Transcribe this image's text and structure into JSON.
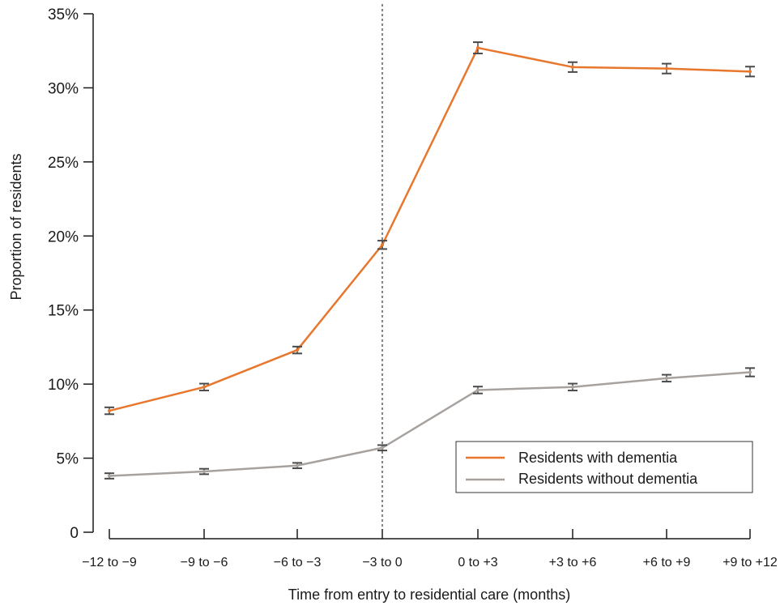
{
  "chart_data": {
    "type": "line",
    "title": "",
    "xlabel": "Time from entry to residential care (months)",
    "ylabel": "Proportion of residents",
    "categories": [
      "−12 to −9",
      "−9 to −6",
      "−6 to −3",
      "−3 to 0",
      "0 to +3",
      "+3 to +6",
      "+6 to +9",
      "+9 to +12"
    ],
    "y_ticks": [
      "0",
      "5%",
      "10%",
      "15%",
      "20%",
      "25%",
      "30%",
      "35%"
    ],
    "ylim": [
      0,
      35
    ],
    "y_unit": "%",
    "grid": false,
    "error_bars": true,
    "legend_position": "bottom-right",
    "reference_line": {
      "at_category": "−3 to 0",
      "style": "dotted"
    },
    "series": [
      {
        "name": "Residents with dementia",
        "color": "#e8772e",
        "values": [
          8.2,
          9.8,
          12.3,
          19.4,
          32.7,
          31.4,
          31.3,
          31.1
        ],
        "error": [
          0.15,
          0.15,
          0.15,
          0.2,
          0.3,
          0.25,
          0.25,
          0.25
        ]
      },
      {
        "name": "Residents without dementia",
        "color": "#a8a29e",
        "values": [
          3.8,
          4.1,
          4.5,
          5.7,
          9.6,
          9.8,
          10.4,
          10.8
        ],
        "error": [
          0.1,
          0.1,
          0.1,
          0.1,
          0.15,
          0.15,
          0.15,
          0.2
        ]
      }
    ]
  }
}
